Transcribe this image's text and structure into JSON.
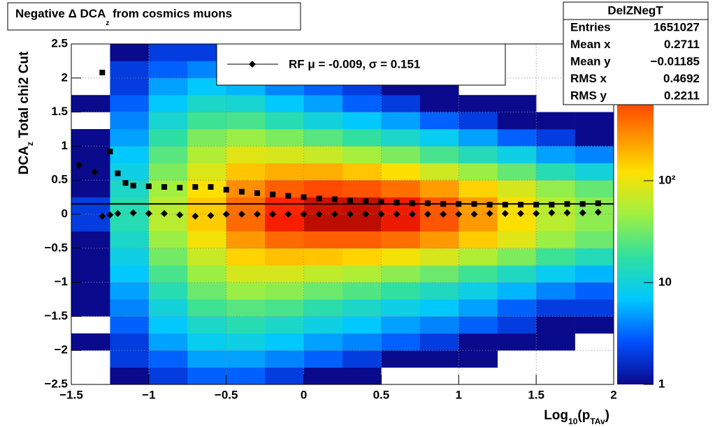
{
  "chart_data": {
    "type": "heatmap",
    "title": [
      "Negative Δ DCA",
      "z",
      " from cosmics muons"
    ],
    "xlabel": [
      "Log",
      "10",
      "(p",
      "TAv",
      ")"
    ],
    "ylabel": [
      "DCA",
      "z",
      "  Total chi2 Cut"
    ],
    "xlim": [
      -1.5,
      2
    ],
    "ylim": [
      -2.5,
      2.5
    ],
    "xticks": [
      {
        "value": -1.5,
        "label": "−1.5"
      },
      {
        "value": -1,
        "label": "−1"
      },
      {
        "value": -0.5,
        "label": "−0.5"
      },
      0,
      0.5,
      1,
      1.5,
      2
    ],
    "yticks": [
      {
        "value": -2.5,
        "label": "−2.5"
      },
      {
        "value": -2,
        "label": "−2"
      },
      {
        "value": -1.5,
        "label": "−1.5"
      },
      {
        "value": -1,
        "label": "−1"
      },
      {
        "value": -0.5,
        "label": "−0.5"
      },
      0,
      0.5,
      1,
      1.5,
      2,
      2.5
    ],
    "grid": true,
    "xbins": [
      -1.5,
      -1.25,
      -1,
      -0.75,
      -0.5,
      -0.25,
      0,
      0.25,
      0.5,
      0.75,
      1,
      1.25,
      1.5,
      1.75,
      2
    ],
    "ybins": [
      -2.5,
      -2.25,
      -2,
      -1.75,
      -1.5,
      -1.25,
      -1,
      -0.75,
      -0.5,
      -0.25,
      0,
      0.25,
      0.5,
      0.75,
      1,
      1.25,
      1.5,
      1.75,
      2,
      2.25,
      2.5
    ],
    "z": [
      [
        0,
        0,
        1,
        0,
        1,
        1,
        1,
        1,
        1,
        2,
        2,
        1,
        1,
        1,
        1,
        0,
        1,
        0,
        0,
        0
      ],
      [
        1,
        2,
        2,
        3,
        4,
        5,
        7,
        9,
        12,
        15,
        15,
        12,
        9,
        7,
        5,
        4,
        3,
        2,
        2,
        1
      ],
      [
        2,
        3,
        5,
        7,
        10,
        15,
        22,
        32,
        45,
        60,
        60,
        48,
        35,
        25,
        17,
        11,
        7,
        5,
        3,
        2
      ],
      [
        3,
        5,
        8,
        12,
        20,
        30,
        45,
        70,
        110,
        150,
        150,
        120,
        85,
        55,
        35,
        20,
        12,
        7,
        4,
        2
      ],
      [
        3,
        5,
        9,
        15,
        25,
        45,
        80,
        140,
        250,
        400,
        380,
        280,
        160,
        90,
        45,
        22,
        11,
        6,
        3,
        2
      ],
      [
        2,
        4,
        7,
        12,
        22,
        40,
        80,
        170,
        400,
        900,
        800,
        450,
        200,
        80,
        35,
        15,
        7,
        4,
        2,
        1
      ],
      [
        1,
        3,
        5,
        9,
        16,
        30,
        65,
        160,
        450,
        1500,
        1300,
        550,
        200,
        70,
        25,
        10,
        5,
        3,
        1,
        1
      ],
      [
        1,
        2,
        4,
        7,
        12,
        24,
        55,
        140,
        450,
        1500,
        1400,
        500,
        160,
        50,
        18,
        7,
        3,
        2,
        1,
        0
      ],
      [
        0,
        1,
        3,
        5,
        9,
        18,
        40,
        110,
        380,
        1000,
        950,
        380,
        120,
        35,
        12,
        5,
        2,
        1,
        0,
        0
      ],
      [
        0,
        1,
        2,
        4,
        7,
        13,
        30,
        80,
        250,
        500,
        480,
        240,
        75,
        22,
        8,
        3,
        1,
        1,
        0,
        0
      ],
      [
        0,
        1,
        1,
        3,
        5,
        9,
        20,
        55,
        150,
        250,
        240,
        140,
        45,
        14,
        5,
        2,
        1,
        0,
        0,
        0
      ],
      [
        0,
        0,
        1,
        2,
        3,
        6,
        13,
        35,
        90,
        120,
        120,
        80,
        28,
        9,
        3,
        1,
        1,
        0,
        0,
        0
      ],
      [
        0,
        0,
        1,
        1,
        2,
        4,
        8,
        20,
        45,
        60,
        60,
        42,
        15,
        5,
        2,
        1,
        0,
        0,
        0,
        0
      ],
      [
        0,
        0,
        0,
        1,
        2,
        3,
        6,
        14,
        30,
        40,
        40,
        28,
        10,
        4,
        1,
        1,
        0,
        0,
        0,
        0
      ]
    ],
    "zlog": true,
    "zlim": [
      1,
      2200
    ],
    "zticks": [
      1,
      10,
      {
        "value": 100,
        "label": "10²"
      }
    ],
    "palette": [
      "#0a0a8c",
      "#0050ff",
      "#00c8ff",
      "#30e0a0",
      "#a0f040",
      "#ffe000",
      "#ff8000",
      "#ff2000",
      "#900000"
    ],
    "hline": 0.151,
    "series": [
      {
        "name": "RF μ = -0.009, σ =   0.151",
        "marker": "diamond",
        "color": "#000000",
        "x": [
          -1.45,
          -1.35,
          -1.3,
          -1.25,
          -1.2,
          -1.1,
          -1.0,
          -0.9,
          -0.8,
          -0.7,
          -0.6,
          -0.5,
          -0.4,
          -0.3,
          -0.2,
          -0.1,
          0,
          0.1,
          0.2,
          0.3,
          0.4,
          0.5,
          0.6,
          0.7,
          0.8,
          0.9,
          1.0,
          1.1,
          1.2,
          1.3,
          1.4,
          1.5,
          1.6,
          1.7,
          1.8,
          1.9
        ],
        "values": [
          0.72,
          0.62,
          -0.03,
          -0.01,
          0.01,
          0.02,
          0.01,
          0.01,
          -0.01,
          -0.03,
          -0.02,
          0.0,
          0.0,
          0.0,
          0.0,
          0.0,
          0.0,
          0.0,
          0.0,
          0.0,
          0.0,
          0.0,
          0.0,
          0.0,
          0.0,
          0.0,
          0.0,
          0.0,
          0.01,
          0.01,
          0.01,
          0.01,
          0.02,
          0.02,
          0.02,
          0.03
        ]
      },
      {
        "marker": "square",
        "color": "#000000",
        "x": [
          -1.3,
          -1.25,
          -1.2,
          -1.15,
          -1.1,
          -1.0,
          -0.9,
          -0.8,
          -0.7,
          -0.6,
          -0.5,
          -0.4,
          -0.3,
          -0.2,
          -0.1,
          0,
          0.1,
          0.2,
          0.3,
          0.4,
          0.5,
          0.6,
          0.7,
          0.8,
          0.9,
          1.0,
          1.1,
          1.2,
          1.3,
          1.4,
          1.5,
          1.6,
          1.7,
          1.8,
          1.9
        ],
        "values": [
          2.08,
          0.92,
          0.6,
          0.46,
          0.42,
          0.41,
          0.4,
          0.39,
          0.4,
          0.4,
          0.36,
          0.33,
          0.31,
          0.29,
          0.27,
          0.25,
          0.23,
          0.22,
          0.2,
          0.19,
          0.18,
          0.17,
          0.16,
          0.16,
          0.15,
          0.15,
          0.15,
          0.14,
          0.14,
          0.14,
          0.14,
          0.14,
          0.15,
          0.15,
          0.16
        ]
      }
    ],
    "stats": {
      "title": "DelZNegT",
      "rows": [
        [
          "Entries",
          "1651027"
        ],
        [
          "Mean x",
          "0.2711"
        ],
        [
          "Mean y",
          "−0.01185"
        ],
        [
          "RMS x",
          "0.4692"
        ],
        [
          "RMS y",
          "0.2211"
        ]
      ]
    }
  }
}
